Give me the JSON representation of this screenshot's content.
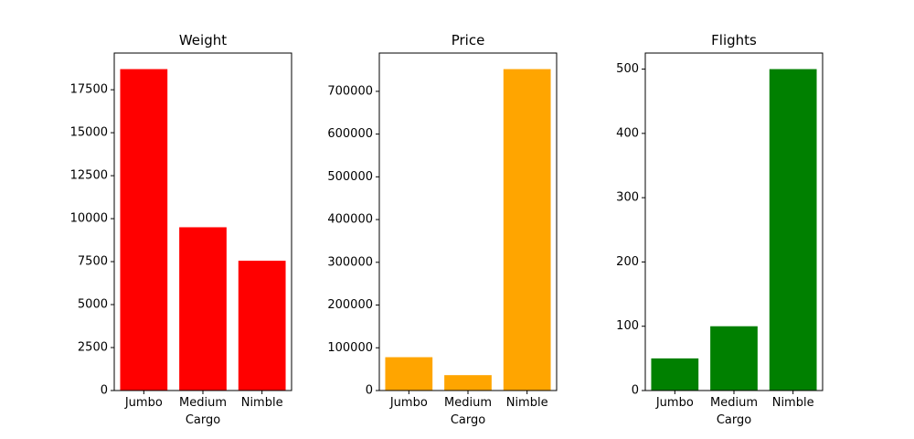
{
  "chart_data": [
    {
      "type": "bar",
      "title": "Weight",
      "xlabel": "Cargo",
      "ylabel": "",
      "categories": [
        "Jumbo",
        "Medium",
        "Nimble"
      ],
      "values": [
        18700,
        9500,
        7550
      ],
      "color": "#ff0000",
      "ylim": [
        0,
        19635
      ],
      "yticks": [
        0,
        2500,
        5000,
        7500,
        10000,
        12500,
        15000,
        17500
      ],
      "grid": false
    },
    {
      "type": "bar",
      "title": "Price",
      "xlabel": "Cargo",
      "ylabel": "",
      "categories": [
        "Jumbo",
        "Medium",
        "Nimble"
      ],
      "values": [
        78000,
        36000,
        752000
      ],
      "color": "#ffa500",
      "ylim": [
        0,
        789600
      ],
      "yticks": [
        0,
        100000,
        200000,
        300000,
        400000,
        500000,
        600000,
        700000
      ],
      "grid": false
    },
    {
      "type": "bar",
      "title": "Flights",
      "xlabel": "Cargo",
      "ylabel": "",
      "categories": [
        "Jumbo",
        "Medium",
        "Nimble"
      ],
      "values": [
        50,
        100,
        500
      ],
      "color": "#008000",
      "ylim": [
        0,
        525
      ],
      "yticks": [
        0,
        100,
        200,
        300,
        400,
        500
      ],
      "grid": false
    }
  ]
}
